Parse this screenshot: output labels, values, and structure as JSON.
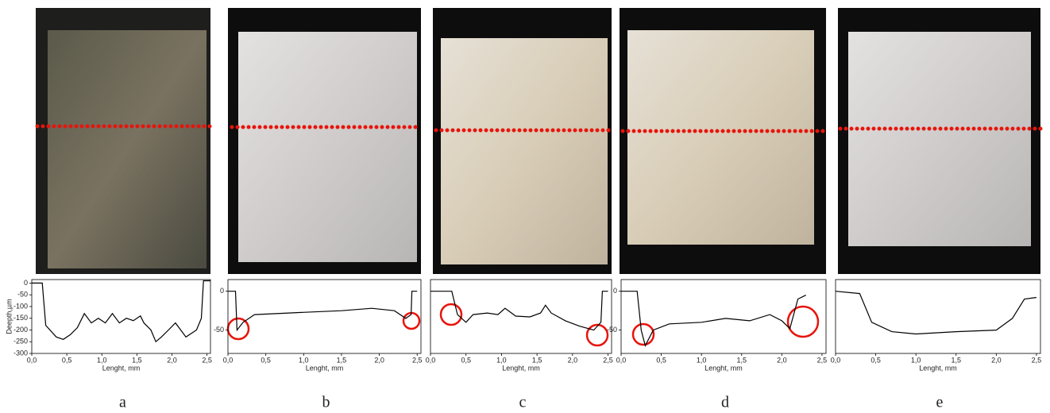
{
  "chart_data": [
    {
      "type": "line",
      "caption": "a",
      "x_label": "Lenght, mm",
      "y_label": "Deepth,µm",
      "color": "#000000",
      "x": [
        0,
        0.15,
        0.2,
        0.35,
        0.45,
        0.55,
        0.65,
        0.75,
        0.85,
        0.95,
        1.05,
        1.15,
        1.25,
        1.35,
        1.45,
        1.55,
        1.6,
        1.7,
        1.77,
        1.85,
        1.95,
        2.05,
        2.2,
        2.35,
        2.42,
        2.45,
        2.55
      ],
      "values": [
        0,
        0,
        -180,
        -230,
        -240,
        -220,
        -190,
        -130,
        -170,
        -150,
        -170,
        -130,
        -170,
        -150,
        -160,
        -140,
        -170,
        -200,
        -250,
        -230,
        -200,
        -170,
        -230,
        -200,
        -150,
        10,
        10
      ],
      "xlim": [
        0,
        2.55
      ],
      "ylim": [
        -300,
        15
      ],
      "xticks": [
        {
          "value": 0,
          "label": "0,0"
        },
        {
          "value": 0.5,
          "label": "0,5"
        },
        {
          "value": 1,
          "label": "1,0"
        },
        {
          "value": 1.5,
          "label": "1,5"
        },
        {
          "value": 2,
          "label": "2,0"
        },
        {
          "value": 2.5,
          "label": "2,5"
        }
      ],
      "yticks": [
        0,
        -50,
        -100,
        -150,
        -200,
        -250,
        -300
      ]
    },
    {
      "type": "line",
      "caption": "b",
      "x_label": "Lenght, mm",
      "color": "#000000",
      "x": [
        0,
        0.1,
        0.12,
        0.2,
        0.35,
        0.8,
        1.5,
        1.9,
        2.2,
        2.35,
        2.42,
        2.43,
        2.5
      ],
      "values": [
        0,
        0,
        -50,
        -40,
        -30,
        -28,
        -25,
        -22,
        -25,
        -35,
        -30,
        0,
        0
      ],
      "xlim": [
        0,
        2.55
      ],
      "ylim": [
        -80,
        15
      ],
      "xticks": [
        {
          "value": 0,
          "label": "0,0"
        },
        {
          "value": 0.5,
          "label": "0,5"
        },
        {
          "value": 1,
          "label": "1,0"
        },
        {
          "value": 1.5,
          "label": "1,5"
        },
        {
          "value": 2,
          "label": "2,0"
        },
        {
          "value": 2.5,
          "label": "2,5"
        }
      ],
      "yticks": [
        0,
        -50
      ]
    },
    {
      "type": "line",
      "caption": "c",
      "x_label": "Lenght, mm",
      "color": "#000000",
      "x": [
        0,
        0.3,
        0.38,
        0.5,
        0.6,
        0.8,
        0.95,
        1.05,
        1.2,
        1.4,
        1.55,
        1.62,
        1.7,
        1.9,
        2.1,
        2.3,
        2.4,
        2.42,
        2.5
      ],
      "values": [
        0,
        0,
        -30,
        -40,
        -30,
        -28,
        -30,
        -22,
        -32,
        -33,
        -28,
        -18,
        -28,
        -38,
        -45,
        -50,
        -40,
        0,
        0
      ],
      "xlim": [
        0,
        2.55
      ],
      "ylim": [
        -80,
        15
      ],
      "xticks": [
        {
          "value": 0,
          "label": "0,0"
        },
        {
          "value": 0.5,
          "label": "0,5"
        },
        {
          "value": 1,
          "label": "1,0"
        },
        {
          "value": 1.5,
          "label": "1,5"
        },
        {
          "value": 2,
          "label": "2,0"
        },
        {
          "value": 2.5,
          "label": "2,5"
        }
      ]
    },
    {
      "type": "line",
      "caption": "d",
      "x_label": "Lenght, mm",
      "color": "#000000",
      "x": [
        0,
        0.2,
        0.25,
        0.3,
        0.4,
        0.6,
        1.0,
        1.3,
        1.6,
        1.85,
        2.0,
        2.1,
        2.2,
        2.3
      ],
      "values": [
        0,
        0,
        -50,
        -70,
        -50,
        -42,
        -40,
        -35,
        -38,
        -30,
        -38,
        -48,
        -10,
        -5
      ],
      "xlim": [
        0,
        2.55
      ],
      "ylim": [
        -80,
        15
      ],
      "xticks": [
        {
          "value": 0,
          "label": "0,0"
        },
        {
          "value": 0.5,
          "label": "0,5"
        },
        {
          "value": 1,
          "label": "1,0"
        },
        {
          "value": 1.5,
          "label": "1,5"
        },
        {
          "value": 2,
          "label": "2,0"
        },
        {
          "value": 2.5,
          "label": "2,5"
        }
      ],
      "yticks": [
        0,
        -50
      ]
    },
    {
      "type": "line",
      "caption": "e",
      "x_label": "Lenght, mm",
      "color": "#000000",
      "x": [
        0,
        0.3,
        0.45,
        0.7,
        1.0,
        1.5,
        2.0,
        2.2,
        2.35,
        2.5
      ],
      "values": [
        0,
        -3,
        -40,
        -52,
        -55,
        -52,
        -50,
        -35,
        -10,
        -8
      ],
      "xlim": [
        0,
        2.55
      ],
      "ylim": [
        -80,
        15
      ],
      "xticks": [
        {
          "value": 0,
          "label": "0,0"
        },
        {
          "value": 0.5,
          "label": "0,5"
        },
        {
          "value": 1,
          "label": "1,0"
        },
        {
          "value": 1.5,
          "label": "1,5"
        },
        {
          "value": 2,
          "label": "2,0"
        },
        {
          "value": 2.5,
          "label": "2,5"
        }
      ]
    }
  ]
}
